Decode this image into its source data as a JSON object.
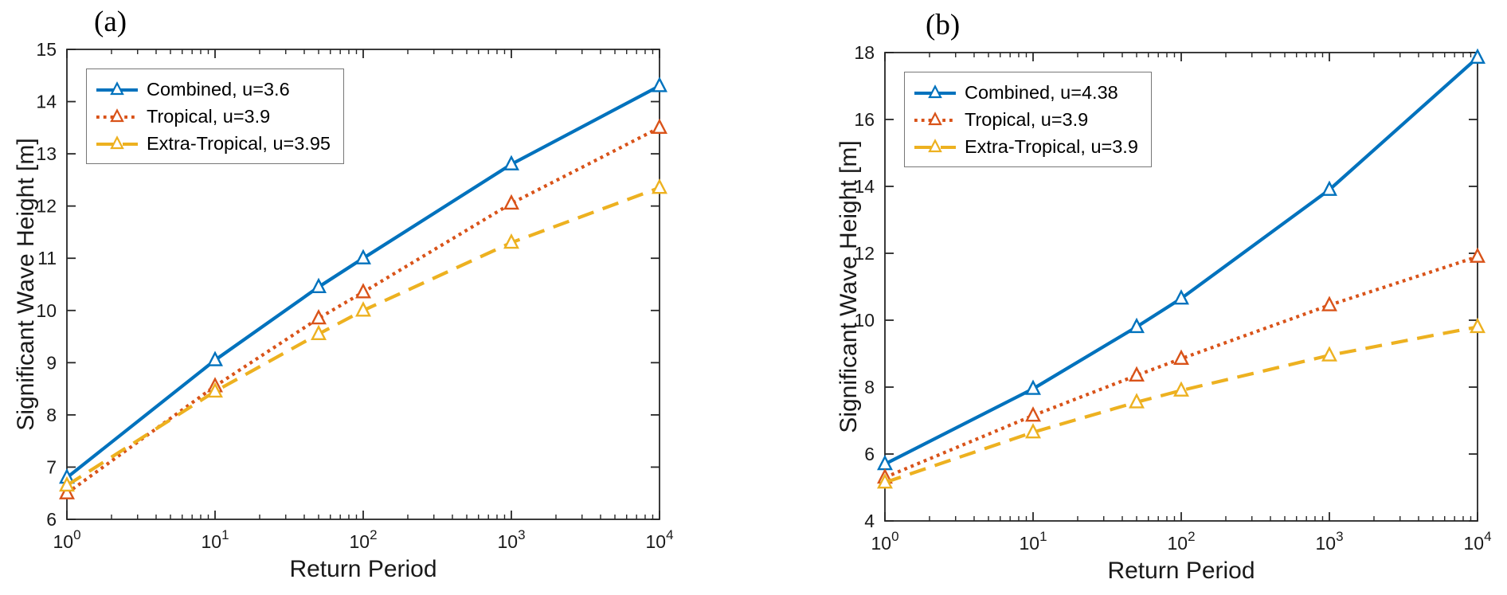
{
  "figure": {
    "background": "#ffffff",
    "axis_color": "#262626",
    "text_color": "#1a1a1a",
    "legend_border_color": "#777777"
  },
  "chart_data": [
    {
      "panel": "a",
      "type": "line",
      "title": "(a)",
      "xlabel": "Return Period",
      "ylabel": "Significant Wave Height [m]",
      "x_scale": "log10",
      "xlim": [
        1,
        10000
      ],
      "ylim": [
        6,
        15
      ],
      "x_tick_labels": [
        "10^0",
        "10^1",
        "10^2",
        "10^3",
        "10^4"
      ],
      "y_ticks": [
        6,
        7,
        8,
        9,
        10,
        11,
        12,
        13,
        14,
        15
      ],
      "grid": false,
      "legend_position": "top-left",
      "x": [
        1,
        10,
        50,
        100,
        1000,
        10000
      ],
      "series": [
        {
          "label": "Combined, u=3.6",
          "color": "#0072BD",
          "line_style": "solid",
          "marker": "triangle-up",
          "values": [
            6.8,
            9.05,
            10.45,
            11.0,
            12.8,
            14.3
          ]
        },
        {
          "label": "Tropical, u=3.9",
          "color": "#D95319",
          "line_style": "dotted",
          "marker": "triangle-up",
          "values": [
            6.5,
            8.55,
            9.85,
            10.35,
            12.05,
            13.5
          ]
        },
        {
          "label": "Extra-Tropical, u=3.95",
          "color": "#EDB120",
          "line_style": "dashed",
          "marker": "triangle-up",
          "values": [
            6.65,
            8.45,
            9.55,
            10.0,
            11.3,
            12.35
          ]
        }
      ]
    },
    {
      "panel": "b",
      "type": "line",
      "title": "(b)",
      "xlabel": "Return Period",
      "ylabel": "Significant Wave Height [m]",
      "x_scale": "log10",
      "xlim": [
        1,
        10000
      ],
      "ylim": [
        4,
        18
      ],
      "x_tick_labels": [
        "10^0",
        "10^1",
        "10^2",
        "10^3",
        "10^4"
      ],
      "y_ticks": [
        4,
        6,
        8,
        10,
        12,
        14,
        16,
        18
      ],
      "grid": false,
      "legend_position": "top-left",
      "x": [
        1,
        10,
        50,
        100,
        1000,
        10000
      ],
      "series": [
        {
          "label": "Combined, u=4.38",
          "color": "#0072BD",
          "line_style": "solid",
          "marker": "triangle-up",
          "values": [
            5.7,
            7.95,
            9.8,
            10.65,
            13.9,
            17.85
          ]
        },
        {
          "label": "Tropical, u=3.9",
          "color": "#D95319",
          "line_style": "dotted",
          "marker": "triangle-up",
          "values": [
            5.3,
            7.15,
            8.35,
            8.85,
            10.45,
            11.9
          ]
        },
        {
          "label": "Extra-Tropical, u=3.9",
          "color": "#EDB120",
          "line_style": "dashed",
          "marker": "triangle-up",
          "values": [
            5.15,
            6.65,
            7.55,
            7.9,
            8.95,
            9.8
          ]
        }
      ]
    }
  ]
}
